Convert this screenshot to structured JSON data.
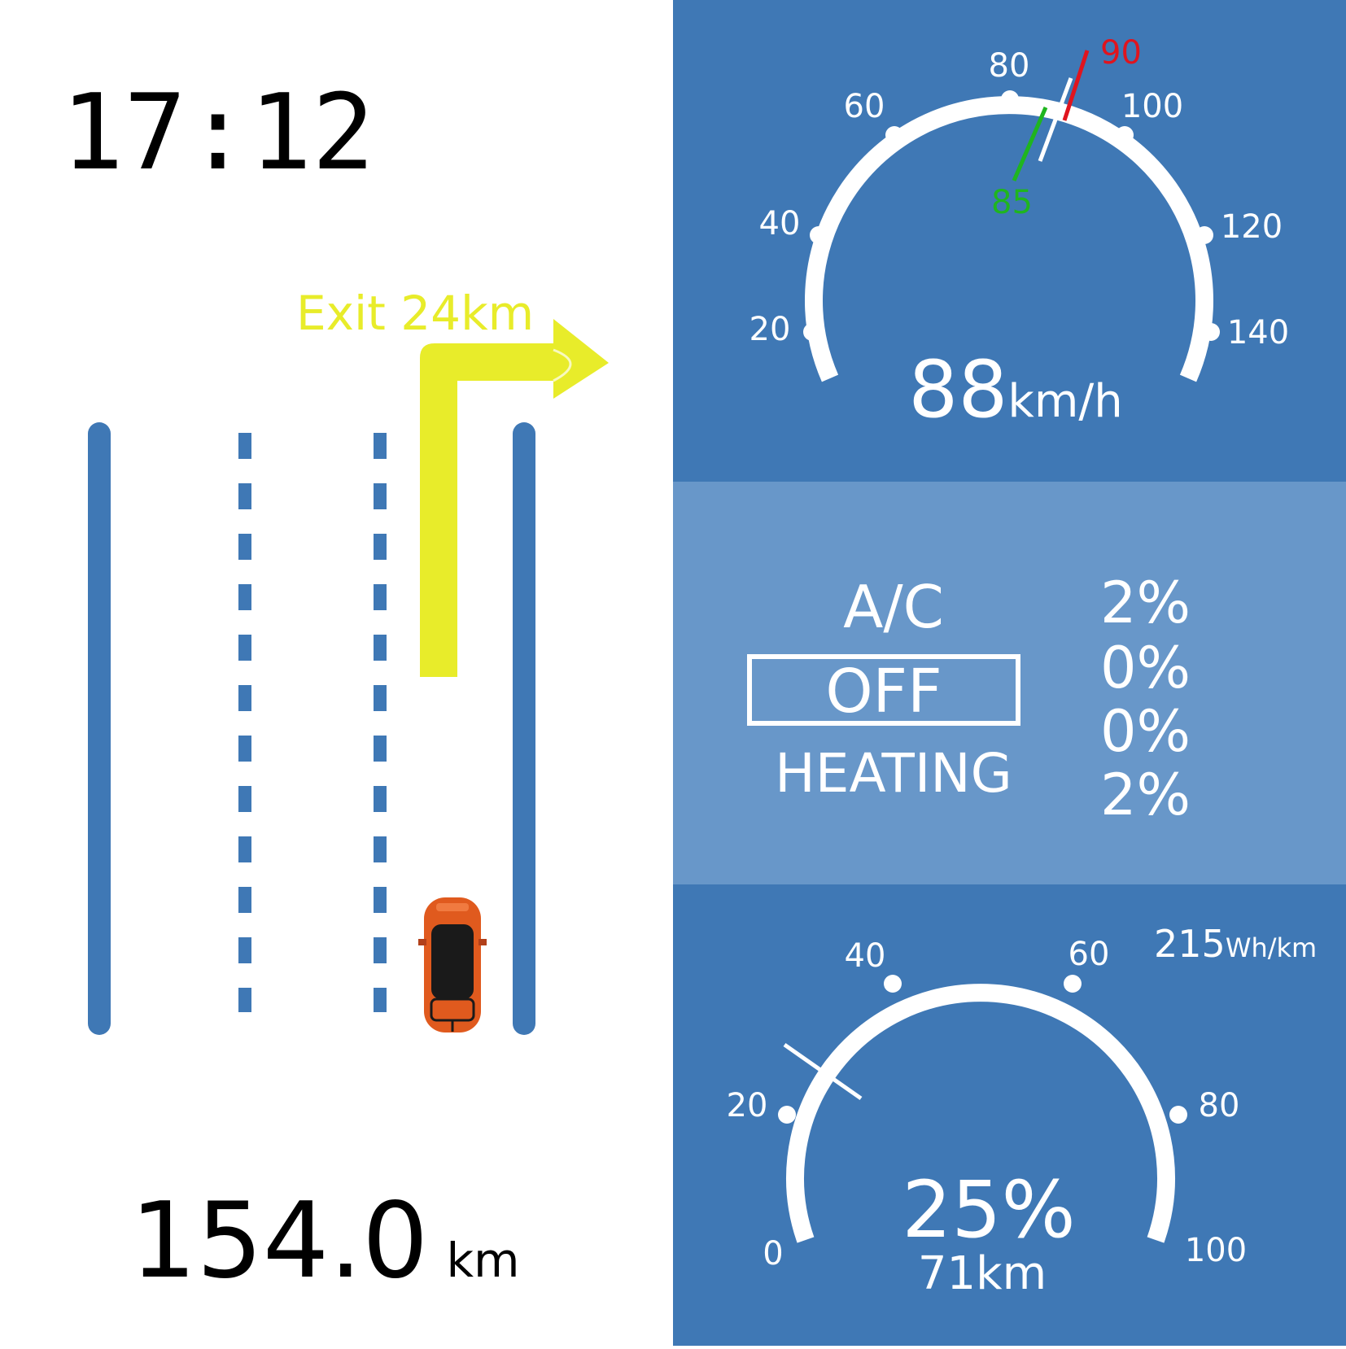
{
  "clock": {
    "time": "17:12"
  },
  "odometer": {
    "value": "154.0",
    "unit": "km"
  },
  "navigation": {
    "exit_text": "Exit 24km",
    "turn_direction": "right",
    "arrow_color": "#e8ec2a"
  },
  "road": {
    "lane_color": "#3f78b5",
    "car_color": "#e05a1e"
  },
  "speedometer": {
    "ticks": [
      "20",
      "40",
      "60",
      "80",
      "100",
      "120",
      "140"
    ],
    "speed_value": "88",
    "speed_unit": "km/h",
    "limit_low": "85",
    "limit_high": "90",
    "limit_low_color": "#1fb51f",
    "limit_high_color": "#e0141e",
    "needle_value": 88
  },
  "climate": {
    "ac_label": "A/C",
    "mode_status": "OFF",
    "heating_label": "HEATING",
    "percentages": [
      "2%",
      "0%",
      "0%",
      "2%"
    ]
  },
  "battery": {
    "ticks": [
      "0",
      "20",
      "40",
      "60",
      "80",
      "100"
    ],
    "percent": "25%",
    "range": "71km",
    "consumption_value": "215",
    "consumption_unit": "Wh/km",
    "level_fraction": 0.25
  },
  "colors": {
    "panel_dark": "#3f78b5",
    "panel_light": "#6897c9",
    "white": "#ffffff"
  }
}
